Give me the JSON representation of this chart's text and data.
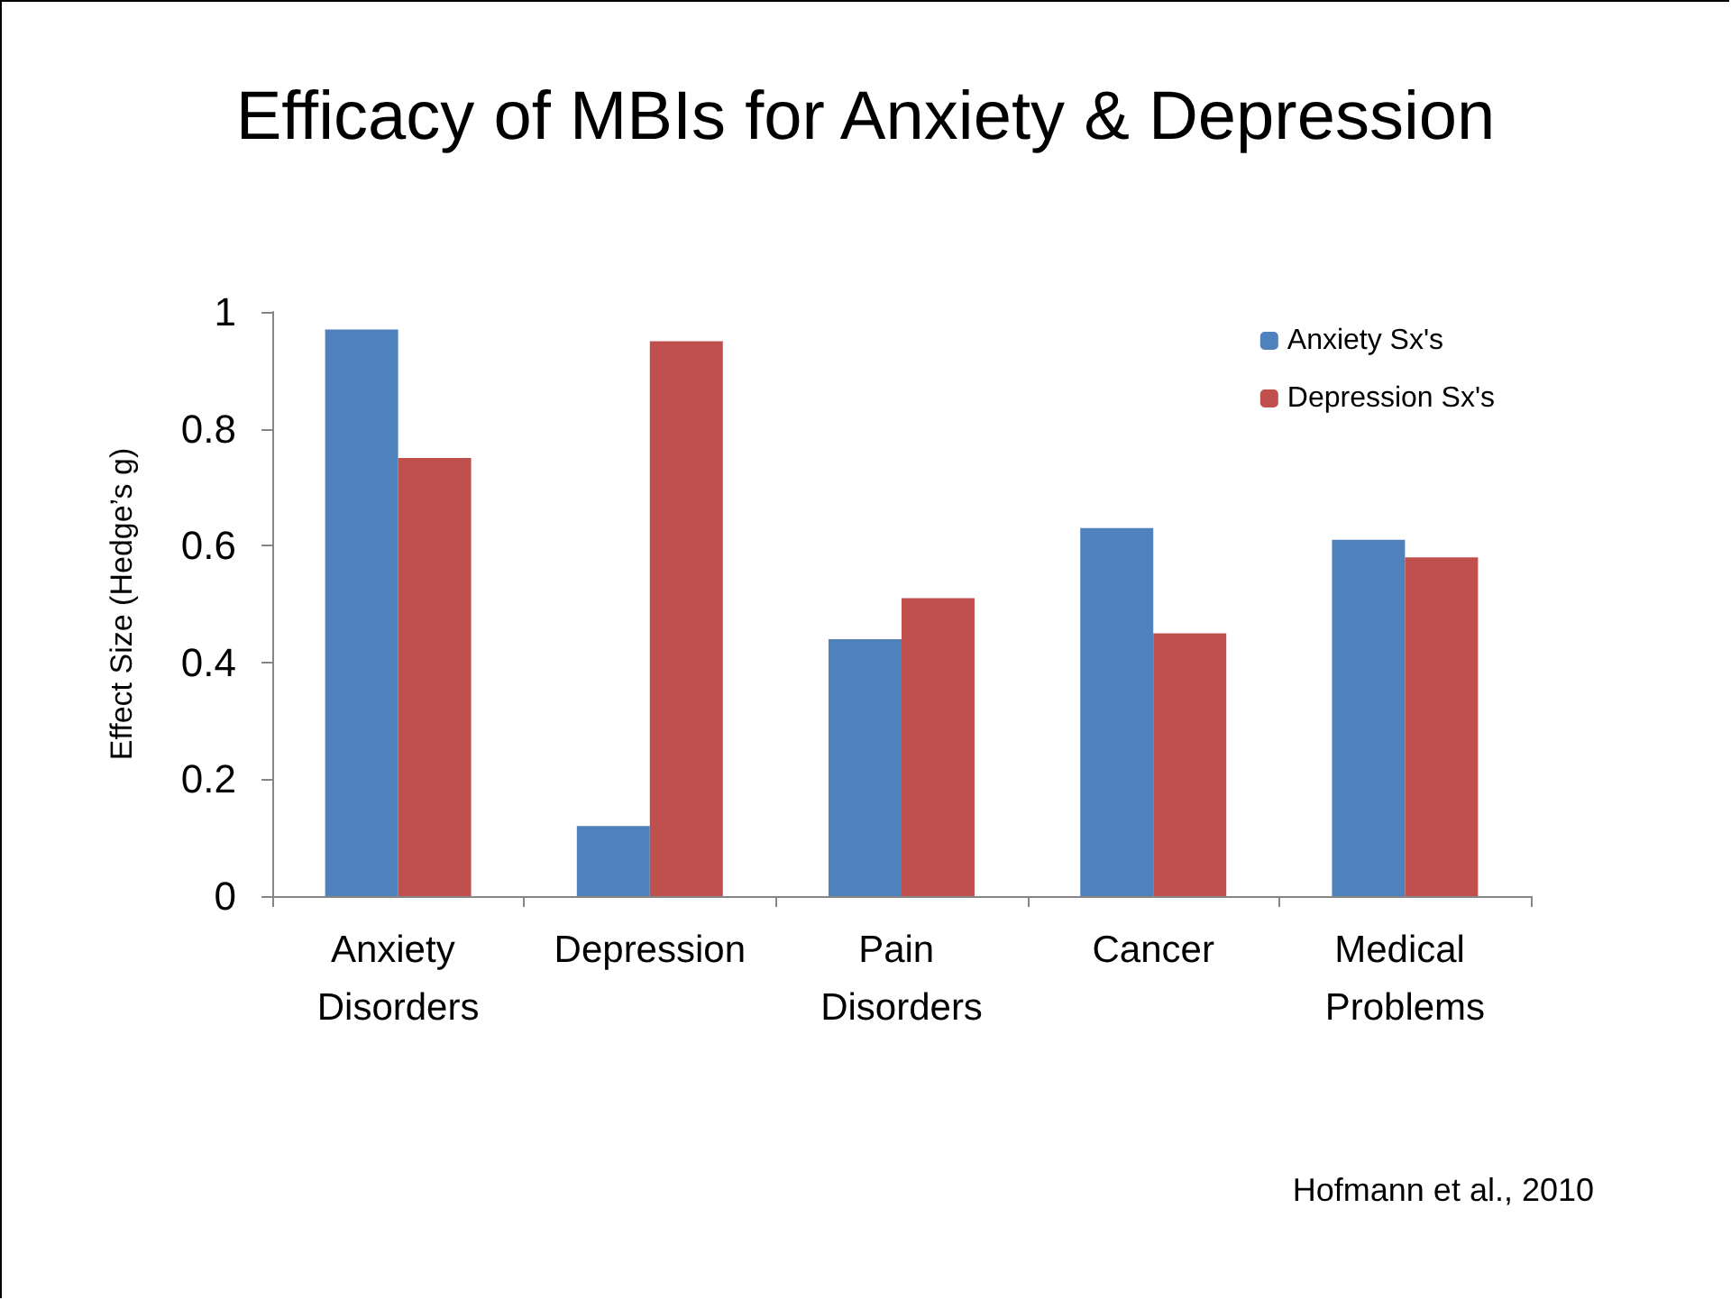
{
  "chart_data": {
    "type": "bar",
    "title": "Efficacy of MBIs for Anxiety & Depression",
    "ylabel": "Effect Size (Hedge’s g)",
    "categories": [
      "Anxiety Disorders",
      "Depression",
      "Pain Disorders",
      "Cancer",
      "Medical Problems"
    ],
    "series": [
      {
        "name": "Anxiety Sx's",
        "color": "#4f81bd",
        "values": [
          0.97,
          0.12,
          0.44,
          0.63,
          0.61
        ]
      },
      {
        "name": "Depression Sx's",
        "color": "#c0504d",
        "values": [
          0.75,
          0.95,
          0.51,
          0.45,
          0.58
        ]
      }
    ],
    "ylim": [
      0,
      1
    ],
    "yticks": [
      0,
      0.2,
      0.4,
      0.6,
      0.8,
      1
    ],
    "grid": false,
    "legend": "top right",
    "annotations": [
      "Hofmann et al., 2010"
    ]
  }
}
